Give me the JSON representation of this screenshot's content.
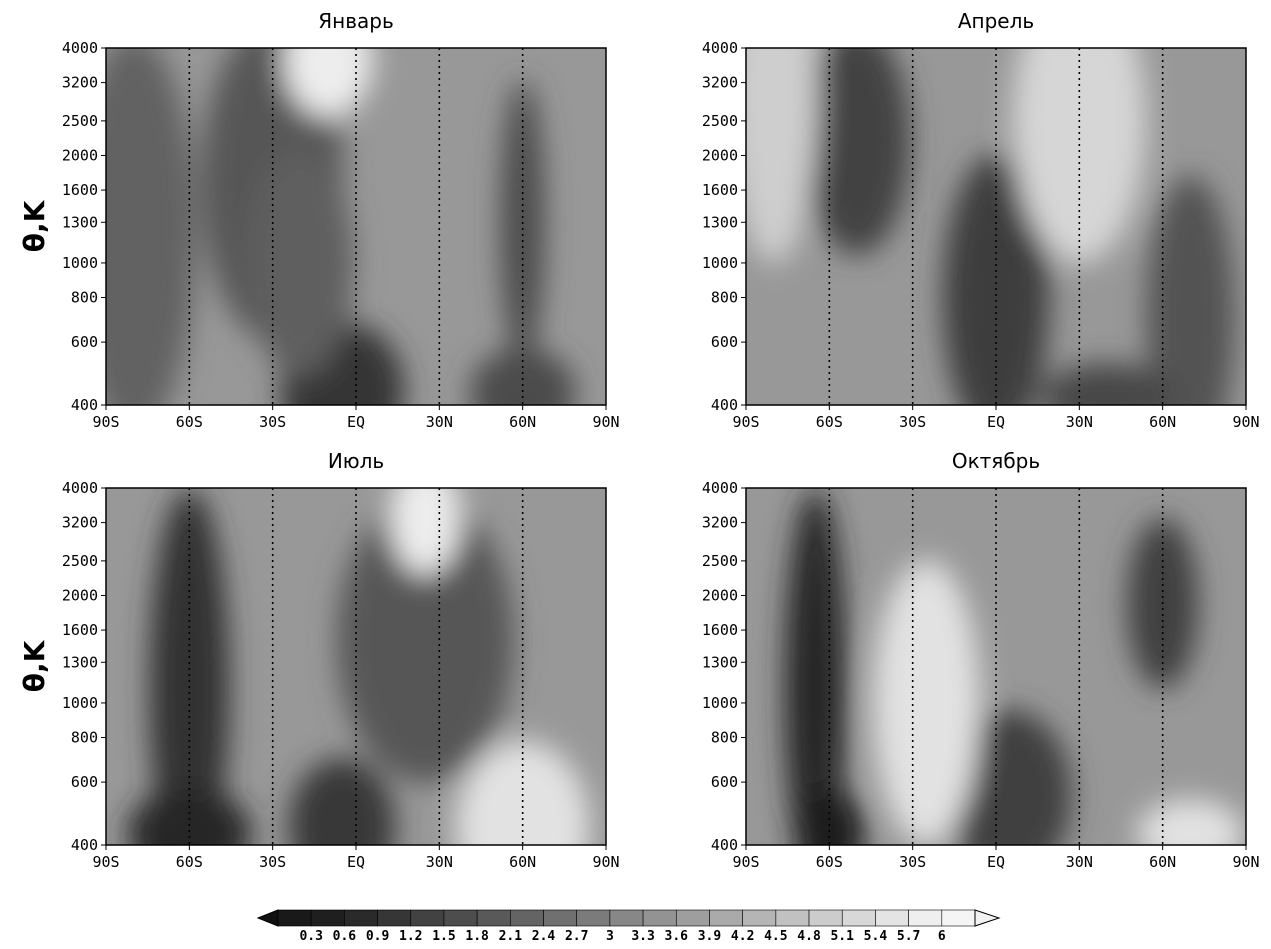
{
  "page": {
    "y_axis_label": "θ,K"
  },
  "colorbar": {
    "levels": [
      "0.3",
      "0.6",
      "0.9",
      "1.2",
      "1.5",
      "1.8",
      "2.1",
      "2.4",
      "2.7",
      "3",
      "3.3",
      "3.6",
      "3.9",
      "4.2",
      "4.5",
      "4.8",
      "5.1",
      "5.4",
      "5.7",
      "6"
    ],
    "dark_color": "#111111",
    "light_color": "#f2f2f2"
  },
  "chart_data": [
    {
      "type": "heatmap",
      "title": "Январь",
      "ylabel": "θ,K",
      "x_ticks": [
        "90S",
        "60S",
        "30S",
        "EQ",
        "30N",
        "60N",
        "90N"
      ],
      "y_ticks": [
        "4000",
        "3200",
        "2500",
        "2000",
        "1600",
        "1300",
        "1000",
        "800",
        "600",
        "400"
      ],
      "xlim": [
        -90,
        90
      ],
      "ylim": [
        400,
        4000
      ],
      "y_scale": "log",
      "grid": true,
      "fill_description": "grayscale shading 0.3-6",
      "blobs": [
        {
          "lat": -30,
          "theta": 1700,
          "value": 1.9,
          "slat": 16,
          "sth": 0.28
        },
        {
          "lat": -5,
          "theta": 440,
          "value": 1.0,
          "slat": 14,
          "sth": 0.12
        },
        {
          "lat": 60,
          "theta": 1300,
          "value": 1.6,
          "slat": 5,
          "sth": 0.25
        },
        {
          "lat": 60,
          "theta": 430,
          "value": 1.6,
          "slat": 12,
          "sth": 0.08
        },
        {
          "lat": -80,
          "theta": 1200,
          "value": 2.2,
          "slat": 14,
          "sth": 0.35
        },
        {
          "lat": -10,
          "theta": 3700,
          "value": 5.8,
          "slat": 10,
          "sth": 0.1
        },
        {
          "lat": -20,
          "theta": 1000,
          "value": 2.1,
          "slat": 12,
          "sth": 0.2
        }
      ]
    },
    {
      "type": "heatmap",
      "title": "Апрель",
      "ylabel": "",
      "x_ticks": [
        "90S",
        "60S",
        "30S",
        "EQ",
        "30N",
        "60N",
        "90N"
      ],
      "y_ticks": [
        "4000",
        "3200",
        "2500",
        "2000",
        "1600",
        "1300",
        "1000",
        "800",
        "600",
        "400"
      ],
      "xlim": [
        -90,
        90
      ],
      "ylim": [
        400,
        4000
      ],
      "y_scale": "log",
      "grid": true,
      "fill_description": "grayscale shading 0.3-6",
      "blobs": [
        {
          "lat": -50,
          "theta": 2200,
          "value": 1.4,
          "slat": 12,
          "sth": 0.2
        },
        {
          "lat": 0,
          "theta": 800,
          "value": 1.2,
          "slat": 12,
          "sth": 0.25
        },
        {
          "lat": 70,
          "theta": 700,
          "value": 1.8,
          "slat": 10,
          "sth": 0.25
        },
        {
          "lat": 40,
          "theta": 420,
          "value": 1.5,
          "slat": 15,
          "sth": 0.06
        },
        {
          "lat": 30,
          "theta": 2500,
          "value": 5.2,
          "slat": 15,
          "sth": 0.25
        },
        {
          "lat": -80,
          "theta": 3000,
          "value": 5.0,
          "slat": 10,
          "sth": 0.3
        }
      ]
    },
    {
      "type": "heatmap",
      "title": "Июль",
      "ylabel": "θ,K",
      "x_ticks": [
        "90S",
        "60S",
        "30S",
        "EQ",
        "30N",
        "60N",
        "90N"
      ],
      "y_ticks": [
        "4000",
        "3200",
        "2500",
        "2000",
        "1600",
        "1300",
        "1000",
        "800",
        "600",
        "400"
      ],
      "xlim": [
        -90,
        90
      ],
      "ylim": [
        400,
        4000
      ],
      "y_scale": "log",
      "grid": true,
      "fill_description": "grayscale shading 0.3-6",
      "blobs": [
        {
          "lat": -60,
          "theta": 1100,
          "value": 0.9,
          "slat": 9,
          "sth": 0.35
        },
        {
          "lat": -60,
          "theta": 430,
          "value": 0.6,
          "slat": 14,
          "sth": 0.08
        },
        {
          "lat": 25,
          "theta": 1500,
          "value": 1.9,
          "slat": 20,
          "sth": 0.25
        },
        {
          "lat": -5,
          "theta": 450,
          "value": 1.1,
          "slat": 12,
          "sth": 0.12
        },
        {
          "lat": 25,
          "theta": 3300,
          "value": 5.8,
          "slat": 8,
          "sth": 0.1
        },
        {
          "lat": 60,
          "theta": 450,
          "value": 5.5,
          "slat": 15,
          "sth": 0.15
        }
      ]
    },
    {
      "type": "heatmap",
      "title": "Октябрь",
      "ylabel": "",
      "x_ticks": [
        "90S",
        "60S",
        "30S",
        "EQ",
        "30N",
        "60N",
        "90N"
      ],
      "y_ticks": [
        "4000",
        "3200",
        "2500",
        "2000",
        "1600",
        "1300",
        "1000",
        "800",
        "600",
        "400"
      ],
      "xlim": [
        -90,
        90
      ],
      "ylim": [
        400,
        4000
      ],
      "y_scale": "log",
      "grid": true,
      "fill_description": "grayscale shading 0.3-6",
      "blobs": [
        {
          "lat": -65,
          "theta": 1100,
          "value": 0.6,
          "slat": 7,
          "sth": 0.35
        },
        {
          "lat": -60,
          "theta": 430,
          "value": 0.4,
          "slat": 8,
          "sth": 0.08
        },
        {
          "lat": 5,
          "theta": 550,
          "value": 1.3,
          "slat": 14,
          "sth": 0.15
        },
        {
          "lat": 60,
          "theta": 1900,
          "value": 1.3,
          "slat": 8,
          "sth": 0.15
        },
        {
          "lat": -25,
          "theta": 1000,
          "value": 5.5,
          "slat": 12,
          "sth": 0.25
        },
        {
          "lat": 70,
          "theta": 430,
          "value": 5.5,
          "slat": 12,
          "sth": 0.06
        }
      ]
    }
  ]
}
